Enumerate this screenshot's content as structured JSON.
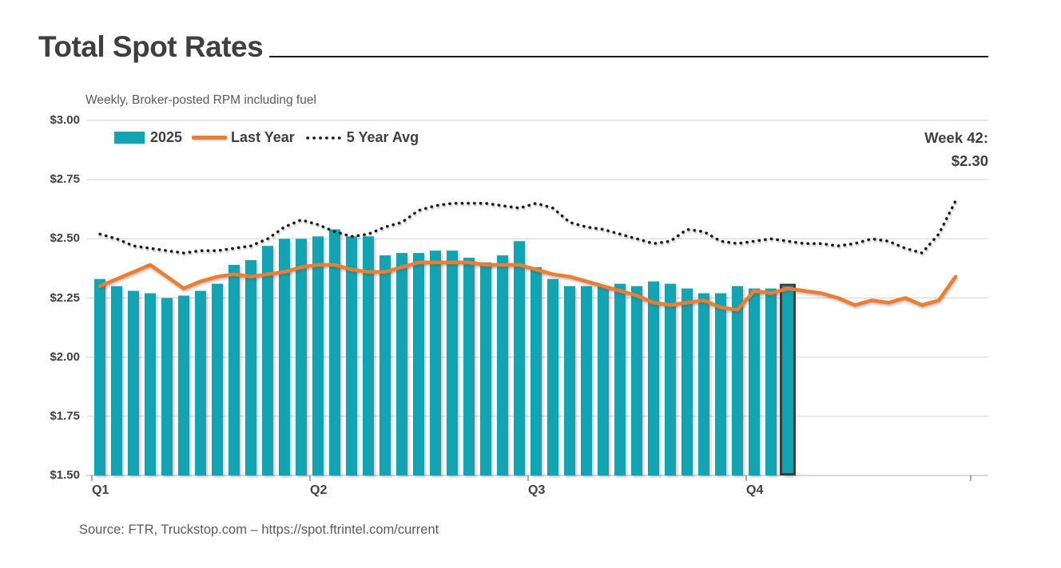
{
  "header": {
    "title": "Total Spot Rates",
    "subtitle": "Weekly, Broker-posted RPM including fuel"
  },
  "legend": {
    "items": [
      {
        "label": "2025",
        "marker": "bar-swatch",
        "color": "#12A4B2"
      },
      {
        "label": "Last Year",
        "marker": "solid-line",
        "color": "#ED7D31"
      },
      {
        "label": "5 Year Avg",
        "marker": "dotted-line",
        "color": "#1A1A1A"
      }
    ]
  },
  "annotation": {
    "line1": "Week 42:",
    "line2": "$2.30"
  },
  "footer": {
    "source": "Source: FTR, Truckstop.com – https://spot.ftrintel.com/current"
  },
  "chart_data": {
    "type": "combo",
    "title": "Total Spot Rates",
    "subtitle": "Weekly, Broker-posted RPM including fuel",
    "xlabel": "",
    "ylabel": "",
    "ylim": [
      1.5,
      3.0
    ],
    "y_ticks": [
      3.0,
      2.75,
      2.5,
      2.25,
      2.0,
      1.75,
      1.5
    ],
    "y_tick_labels": [
      "$3.00",
      "$2.75",
      "$2.50",
      "$2.25",
      "$2.00",
      "$1.75",
      "$1.50"
    ],
    "weeks_total": 52,
    "x_quarter_ticks": [
      {
        "week": 1,
        "label": "Q1"
      },
      {
        "week": 14,
        "label": "Q2"
      },
      {
        "week": 27,
        "label": "Q3"
      },
      {
        "week": 40,
        "label": "Q4"
      }
    ],
    "grid": true,
    "legend_position": "top-left-inside",
    "highlight": {
      "week": 42,
      "label": "Week 42:",
      "value": 2.3,
      "value_label": "$2.30"
    },
    "series": [
      {
        "name": "2025",
        "type": "bar",
        "color": "#12A4B2",
        "values": [
          2.33,
          2.3,
          2.28,
          2.27,
          2.25,
          2.26,
          2.28,
          2.31,
          2.39,
          2.41,
          2.47,
          2.5,
          2.5,
          2.51,
          2.54,
          2.51,
          2.51,
          2.43,
          2.44,
          2.44,
          2.45,
          2.45,
          2.42,
          2.4,
          2.43,
          2.49,
          2.38,
          2.33,
          2.3,
          2.3,
          2.3,
          2.31,
          2.3,
          2.32,
          2.31,
          2.29,
          2.27,
          2.27,
          2.3,
          2.29,
          2.29,
          2.3
        ]
      },
      {
        "name": "Last Year",
        "type": "line",
        "color": "#ED7D31",
        "values": [
          2.3,
          2.33,
          2.36,
          2.39,
          2.34,
          2.29,
          2.32,
          2.34,
          2.35,
          2.34,
          2.35,
          2.36,
          2.38,
          2.39,
          2.39,
          2.37,
          2.36,
          2.36,
          2.38,
          2.4,
          2.4,
          2.4,
          2.4,
          2.39,
          2.39,
          2.39,
          2.37,
          2.35,
          2.34,
          2.32,
          2.3,
          2.28,
          2.26,
          2.23,
          2.22,
          2.23,
          2.24,
          2.21,
          2.2,
          2.28,
          2.27,
          2.29,
          2.28,
          2.27,
          2.25,
          2.22,
          2.24,
          2.23,
          2.25,
          2.22,
          2.24,
          2.34
        ]
      },
      {
        "name": "5 Year Avg",
        "type": "dotted-line",
        "color": "#1A1A1A",
        "values": [
          2.52,
          2.5,
          2.47,
          2.46,
          2.45,
          2.44,
          2.45,
          2.45,
          2.46,
          2.47,
          2.5,
          2.55,
          2.58,
          2.56,
          2.53,
          2.51,
          2.52,
          2.55,
          2.57,
          2.62,
          2.64,
          2.65,
          2.65,
          2.65,
          2.64,
          2.63,
          2.65,
          2.63,
          2.57,
          2.55,
          2.54,
          2.52,
          2.5,
          2.48,
          2.49,
          2.54,
          2.53,
          2.49,
          2.48,
          2.49,
          2.5,
          2.49,
          2.48,
          2.48,
          2.47,
          2.48,
          2.5,
          2.49,
          2.46,
          2.44,
          2.52,
          2.66
        ]
      }
    ]
  }
}
